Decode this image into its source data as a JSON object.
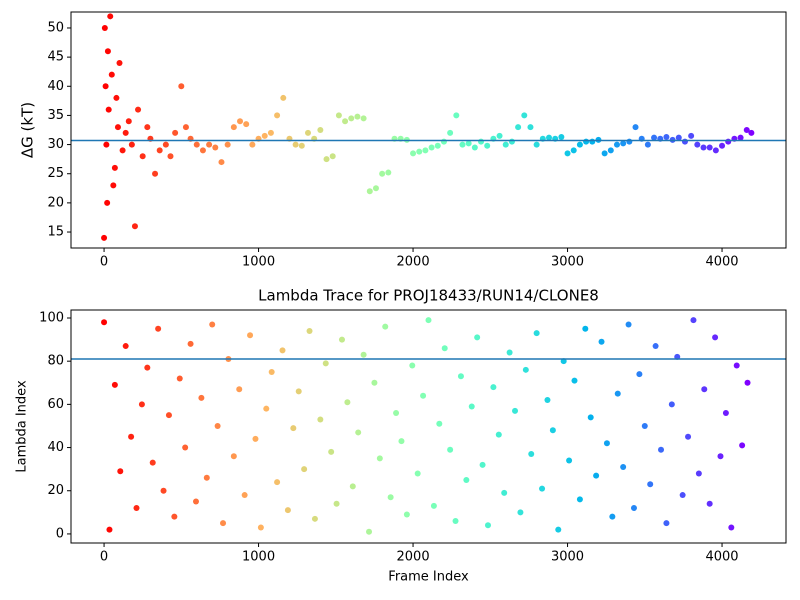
{
  "chart_data": [
    {
      "type": "scatter",
      "ylabel": "ΔG (kT)",
      "colormap": "rainbow_r",
      "hline": 30.7,
      "hline_color": "#1f77b4",
      "xlim": [
        -214,
        4414
      ],
      "xticks": [
        0,
        1000,
        2000,
        3000,
        4000
      ],
      "ylim": [
        12.26,
        52.74
      ],
      "yticks": [
        15,
        20,
        25,
        30,
        35,
        40,
        45,
        50
      ],
      "x": [
        0,
        5,
        10,
        15,
        20,
        25,
        30,
        40,
        50,
        60,
        70,
        80,
        90,
        100,
        120,
        140,
        160,
        180,
        200,
        220,
        250,
        280,
        300,
        330,
        360,
        400,
        430,
        460,
        500,
        530,
        560,
        600,
        640,
        680,
        720,
        760,
        800,
        840,
        880,
        920,
        960,
        1000,
        1040,
        1080,
        1120,
        1160,
        1200,
        1240,
        1280,
        1320,
        1360,
        1400,
        1440,
        1480,
        1520,
        1560,
        1600,
        1640,
        1680,
        1720,
        1760,
        1800,
        1840,
        1880,
        1920,
        1960,
        2000,
        2040,
        2080,
        2120,
        2160,
        2200,
        2240,
        2280,
        2320,
        2360,
        2400,
        2440,
        2480,
        2520,
        2560,
        2600,
        2640,
        2680,
        2720,
        2760,
        2800,
        2840,
        2880,
        2920,
        2960,
        3000,
        3040,
        3080,
        3120,
        3160,
        3200,
        3240,
        3280,
        3320,
        3360,
        3400,
        3440,
        3480,
        3520,
        3560,
        3600,
        3640,
        3680,
        3720,
        3760,
        3800,
        3840,
        3880,
        3920,
        3960,
        4000,
        4040,
        4080,
        4120,
        4160,
        4190
      ],
      "y": [
        14,
        50,
        40,
        30,
        20,
        46,
        36,
        52,
        42,
        23,
        26,
        38,
        33,
        44,
        29,
        32,
        34,
        30,
        16,
        36,
        28,
        33,
        31,
        25,
        29,
        30,
        28,
        32,
        40,
        33,
        31,
        30,
        29,
        30,
        29.5,
        27,
        30,
        33,
        34,
        33.5,
        30,
        31,
        31.5,
        32,
        35,
        38,
        31,
        30,
        29.8,
        32,
        31,
        32.5,
        27.5,
        28,
        35,
        34,
        34.5,
        34.8,
        34.5,
        22,
        22.5,
        25,
        25.2,
        31,
        31,
        30.8,
        28.5,
        28.8,
        29,
        29.5,
        29.8,
        30.5,
        32,
        35,
        30,
        30.2,
        29.5,
        30.5,
        29.8,
        31,
        31.5,
        30,
        30.5,
        33,
        35,
        33,
        30,
        31,
        31.2,
        31,
        31.3,
        28.5,
        29,
        30,
        30.5,
        30.5,
        30.8,
        28.5,
        29,
        30,
        30.2,
        30.5,
        33,
        31,
        30,
        31.2,
        31,
        31.3,
        30.8,
        31.2,
        30.5,
        31.5,
        30,
        29.5,
        29.5,
        29,
        29.8,
        30.5,
        31,
        31.2,
        32.5,
        32
      ]
    },
    {
      "type": "scatter",
      "title": "Lambda Trace for PROJ18433/RUN14/CLONE8",
      "xlabel": "Frame Index",
      "ylabel": "Lambda Index",
      "colormap": "rainbow_r",
      "hline": 81,
      "hline_color": "#1f77b4",
      "xlim": [
        -214,
        4414
      ],
      "xticks": [
        0,
        1000,
        2000,
        3000,
        4000
      ],
      "ylim": [
        -4.2,
        103.7
      ],
      "yticks": [
        0,
        20,
        40,
        60,
        80,
        100
      ],
      "x": [
        0,
        35,
        70,
        105,
        140,
        175,
        210,
        245,
        280,
        315,
        350,
        385,
        420,
        455,
        490,
        525,
        560,
        595,
        630,
        665,
        700,
        735,
        770,
        805,
        840,
        875,
        910,
        945,
        980,
        1015,
        1050,
        1085,
        1120,
        1155,
        1190,
        1225,
        1260,
        1295,
        1330,
        1365,
        1400,
        1435,
        1470,
        1505,
        1540,
        1575,
        1610,
        1645,
        1680,
        1715,
        1750,
        1785,
        1820,
        1855,
        1890,
        1925,
        1960,
        1995,
        2030,
        2065,
        2100,
        2135,
        2170,
        2205,
        2240,
        2275,
        2310,
        2345,
        2380,
        2415,
        2450,
        2485,
        2520,
        2555,
        2590,
        2625,
        2660,
        2695,
        2730,
        2765,
        2800,
        2835,
        2870,
        2905,
        2940,
        2975,
        3010,
        3045,
        3080,
        3115,
        3150,
        3185,
        3220,
        3255,
        3290,
        3325,
        3360,
        3395,
        3430,
        3465,
        3500,
        3535,
        3570,
        3605,
        3640,
        3675,
        3710,
        3745,
        3780,
        3815,
        3850,
        3885,
        3920,
        3955,
        3990,
        4025,
        4060,
        4095,
        4130,
        4165
      ],
      "y": [
        98,
        2,
        69,
        29,
        87,
        45,
        12,
        60,
        77,
        33,
        95,
        20,
        55,
        8,
        72,
        40,
        88,
        15,
        63,
        26,
        97,
        50,
        5,
        81,
        36,
        67,
        18,
        92,
        44,
        3,
        58,
        75,
        24,
        85,
        11,
        49,
        66,
        30,
        94,
        7,
        53,
        79,
        38,
        14,
        90,
        61,
        22,
        47,
        83,
        1,
        70,
        35,
        96,
        17,
        56,
        43,
        9,
        78,
        28,
        64,
        99,
        13,
        51,
        86,
        39,
        6,
        73,
        25,
        59,
        91,
        32,
        4,
        68,
        46,
        19,
        84,
        57,
        10,
        76,
        37,
        93,
        21,
        62,
        48,
        2,
        80,
        34,
        71,
        16,
        95,
        54,
        27,
        89,
        42,
        8,
        65,
        31,
        97,
        12,
        74,
        50,
        23,
        87,
        39,
        5,
        60,
        82,
        18,
        45,
        99,
        28,
        67,
        14,
        91,
        36,
        56,
        3,
        78,
        41,
        70
      ]
    }
  ]
}
